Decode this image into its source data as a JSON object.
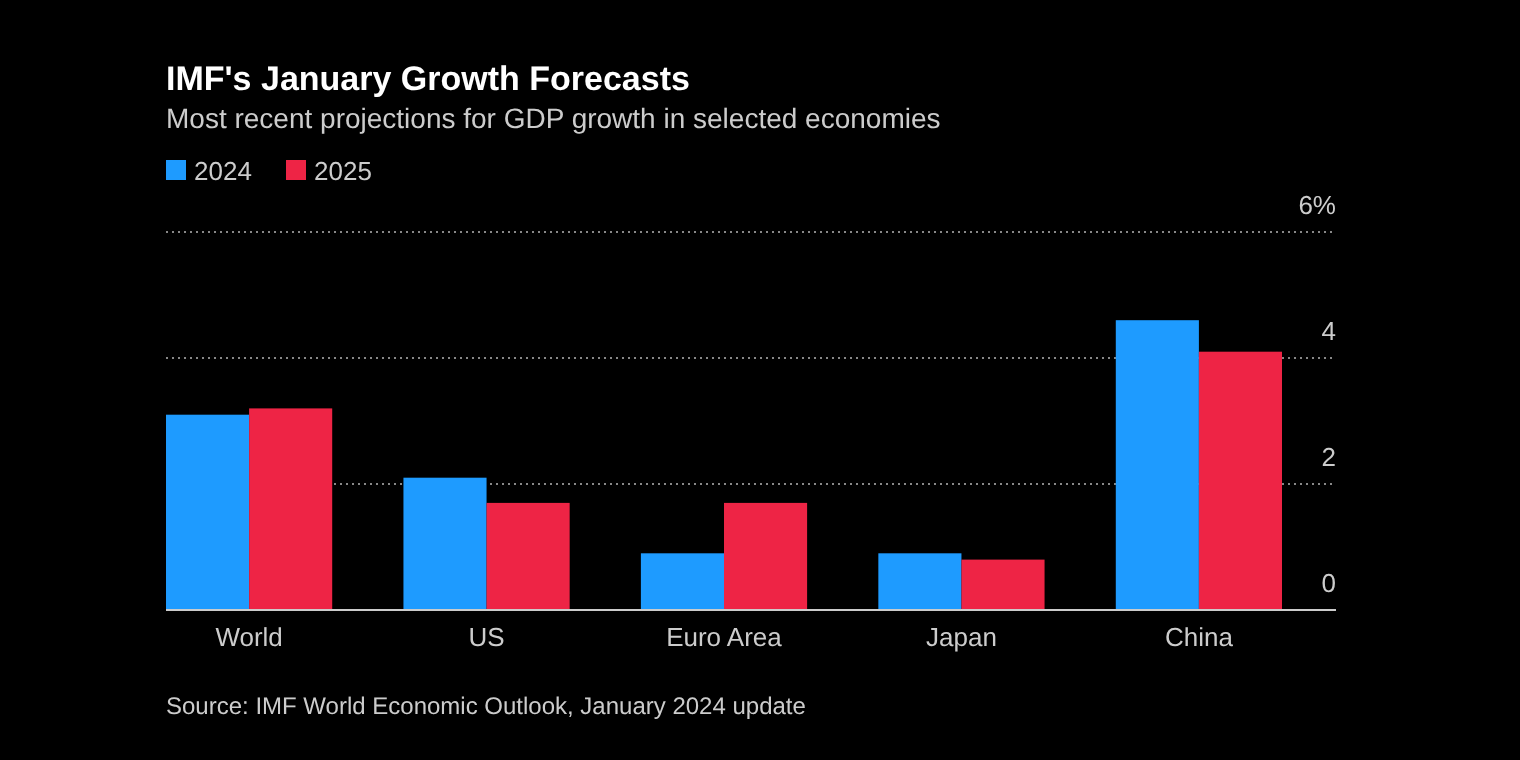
{
  "chart_data": {
    "type": "bar",
    "title": "IMF's January Growth Forecasts",
    "subtitle": "Most recent projections for GDP growth in selected economies",
    "categories": [
      "World",
      "US",
      "Euro Area",
      "Japan",
      "China"
    ],
    "series": [
      {
        "name": "2024",
        "color": "#1e9bff",
        "values": [
          3.1,
          2.1,
          0.9,
          0.9,
          4.6
        ]
      },
      {
        "name": "2025",
        "color": "#ee2445",
        "values": [
          3.2,
          1.7,
          1.7,
          0.8,
          4.1
        ]
      }
    ],
    "ylim": [
      0,
      6
    ],
    "yticks": [
      0,
      2,
      4,
      {
        "value": 6,
        "label": "6%"
      }
    ],
    "grid": "y",
    "legend": "top left",
    "annotations": [
      "Source: IMF World Economic Outlook, January 2024 update"
    ]
  }
}
